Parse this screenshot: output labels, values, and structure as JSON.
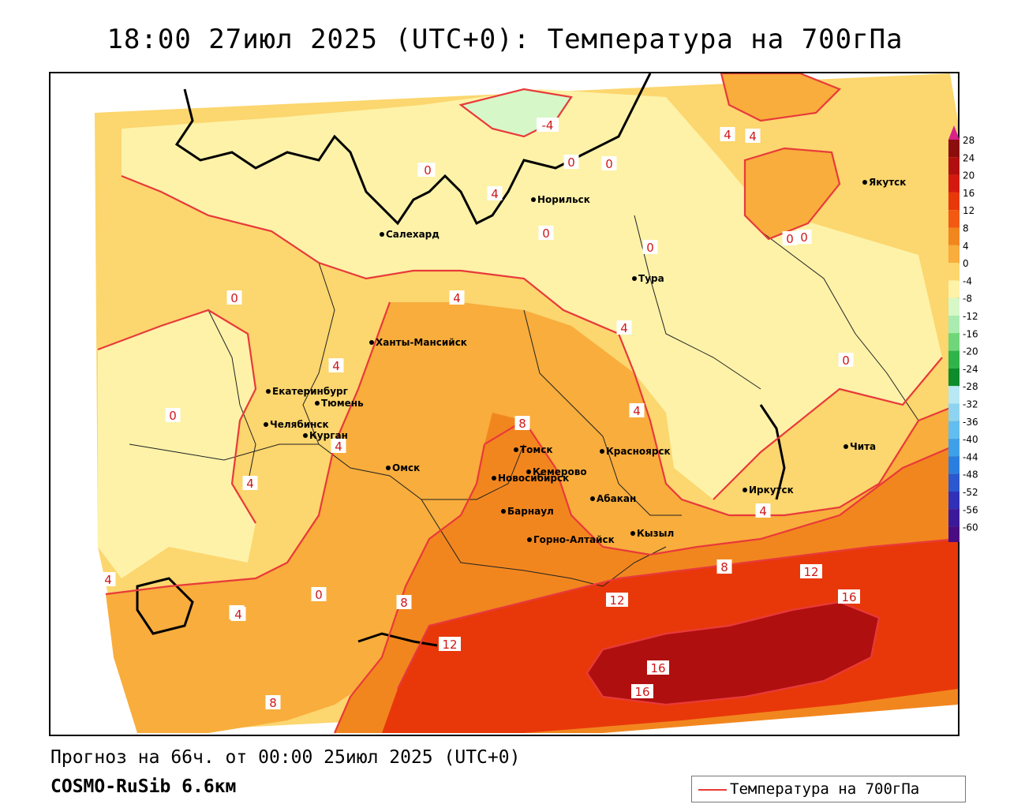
{
  "title": "18:00 27июл 2025 (UTC+0): Температура на 700гПа",
  "footer": {
    "forecast": "Прогноз на 66ч. от 00:00 25июл 2025 (UTC+0)",
    "model": "COSMO-RuSib 6.6км"
  },
  "legend": {
    "label": "Температура на 700гПа",
    "line_color": "#e83a3a"
  },
  "colorbar": {
    "ticks": [
      "28",
      "24",
      "20",
      "16",
      "12",
      "8",
      "4",
      "0",
      "-4",
      "-8",
      "-12",
      "-16",
      "-20",
      "-24",
      "-28",
      "-32",
      "-36",
      "-40",
      "-44",
      "-48",
      "-52",
      "-56",
      "-60"
    ],
    "colors": [
      "#8b0d0d",
      "#b00f0f",
      "#d41a10",
      "#e8380a",
      "#f25a14",
      "#f2861e",
      "#f8ad3c",
      "#fcd66e",
      "#fdf2a8",
      "#d6f7c8",
      "#a9ebb0",
      "#6fd67a",
      "#2fb44a",
      "#0e8c2c",
      "#b8e8f4",
      "#8ed4f0",
      "#62bdf0",
      "#3fa0ea",
      "#2a7ee0",
      "#2a58d0",
      "#3030b8",
      "#3a1a9a",
      "#4a0c82"
    ],
    "top_arrow": "#d6228a",
    "bottom_arrow": "#8a2bd0"
  },
  "cities": [
    {
      "name": "Норильск"
    },
    {
      "name": "Якутск"
    },
    {
      "name": "Салехард"
    },
    {
      "name": "Тура"
    },
    {
      "name": "Ханты-Мансийск"
    },
    {
      "name": "Екатеринбург"
    },
    {
      "name": "Тюмень"
    },
    {
      "name": "Челябинск"
    },
    {
      "name": "Курган"
    },
    {
      "name": "Омск"
    },
    {
      "name": "Новосибирск"
    },
    {
      "name": "Томск"
    },
    {
      "name": "Кемерово"
    },
    {
      "name": "Красноярск"
    },
    {
      "name": "Барнаул"
    },
    {
      "name": "Абакан"
    },
    {
      "name": "Горно-Алтайск"
    },
    {
      "name": "Кызыл"
    },
    {
      "name": "Иркутск"
    },
    {
      "name": "Чита"
    }
  ],
  "contour_labels": [
    "-4",
    "0",
    "4",
    "0",
    "0",
    "0",
    "0",
    "0",
    "4",
    "4",
    "4",
    "0",
    "4",
    "0",
    "4",
    "4",
    "0",
    "0",
    "0",
    "4",
    "4",
    "4",
    "4",
    "0",
    "8",
    "4",
    "4",
    "8",
    "8",
    "12",
    "12",
    "16",
    "12",
    "16",
    "16",
    "8"
  ]
}
